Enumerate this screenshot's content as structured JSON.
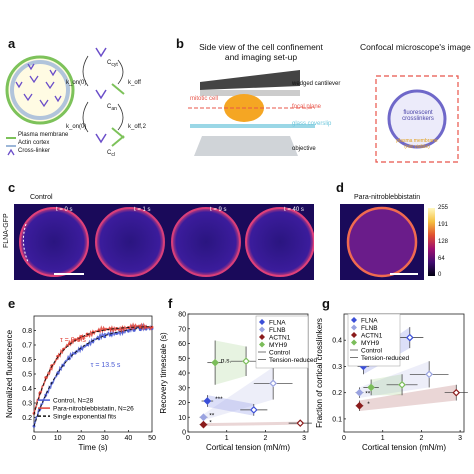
{
  "panels": {
    "a": {
      "letter": "a",
      "legend": [
        "Plasma membrane",
        "Actin cortex",
        "Cross-linker"
      ],
      "states": [
        "C",
        "C",
        "C"
      ],
      "state_subscripts": [
        "cyt",
        "an",
        "cl"
      ],
      "rate_labels": [
        "k_on(0)",
        "k_off",
        "k_on(0)",
        "k_off,2"
      ]
    },
    "b": {
      "letter": "b",
      "title_left": "Side view of the cell confinement and imaging set-up",
      "title_right": "Confocal microscope's image",
      "labels": {
        "cantilever": "wedged cantilever",
        "cell": "mitotic cell",
        "focal": "focal plane",
        "coverslip": "glass coverslip",
        "objective": "objective",
        "fluor": "fluorescent crosslinkers",
        "membrane": "plasma membrane (not visible)"
      },
      "colors": {
        "cell": "#f5a623",
        "focal": "#e8554a",
        "coverslip": "#9ad7e6",
        "ring": "#6f68c9"
      }
    },
    "c": {
      "letter": "c",
      "group_label": "Control",
      "ylabel": "FLNA-GFP",
      "frames": [
        "t = 0 s",
        "t = 1 s",
        "t = 9 s",
        "t = 40 s"
      ]
    },
    "d": {
      "letter": "d",
      "group_label": "Para-nitroblebbistatin",
      "colorbar_ticks": [
        "255",
        "191",
        "128",
        "64",
        "0"
      ]
    },
    "e": {
      "letter": "e"
    },
    "f": {
      "letter": "f"
    },
    "g": {
      "letter": "g"
    }
  },
  "chart_data": [
    {
      "panel": "e",
      "type": "line",
      "xlabel": "Time (s)",
      "ylabel": "Normalized fluorescence",
      "xlim": [
        0,
        50
      ],
      "ylim": [
        0.1,
        0.9
      ],
      "xticks": [
        0,
        10,
        20,
        30,
        40,
        50
      ],
      "yticks": [
        0.2,
        0.3,
        0.4,
        0.5,
        0.6,
        0.7,
        0.8
      ],
      "annotations": [
        "τ = 9.6 s",
        "τ = 13.5 s"
      ],
      "legend": "bottom",
      "series": [
        {
          "name": "Control, N=28",
          "color": "#4a5bd4",
          "tau": 13.5,
          "y0": 0.14,
          "plateau": 0.84
        },
        {
          "name": "Para-nitroblebbistatin, N=26",
          "color": "#e0443a",
          "tau": 9.6,
          "y0": 0.22,
          "plateau": 0.83
        },
        {
          "name": "Single exponential fits",
          "color": "#111111",
          "dashed": true
        }
      ]
    },
    {
      "panel": "f",
      "type": "scatter",
      "xlabel": "Cortical tension (mN/m)",
      "ylabel": "Recovery timescale (s)",
      "xlim": [
        0,
        3.1
      ],
      "ylim": [
        0,
        80
      ],
      "xticks": [
        0,
        1,
        2,
        3
      ],
      "yticks": [
        0,
        10,
        20,
        30,
        40,
        50,
        60,
        70,
        80
      ],
      "legend": "top-right",
      "legend_entries": [
        "FLNA",
        "FLNB",
        "ACTN1",
        "MYH9",
        "Control",
        "Tension-reduced"
      ],
      "annotations": [
        "n.s.",
        "***",
        "**",
        "*"
      ],
      "series": [
        {
          "name": "FLNA",
          "color": "#3b4fd8",
          "points": [
            {
              "x": 0.5,
              "y": 21,
              "xerr": 0.15,
              "yerr": 4
            },
            {
              "x": 1.7,
              "y": 15,
              "xerr": 0.35,
              "yerr": 4
            }
          ]
        },
        {
          "name": "FLNB",
          "color": "#9aa3e0",
          "points": [
            {
              "x": 0.4,
              "y": 10,
              "xerr": 0.1,
              "yerr": 2
            },
            {
              "x": 2.2,
              "y": 33,
              "xerr": 0.5,
              "yerr": 11
            }
          ]
        },
        {
          "name": "ACTN1",
          "color": "#8b1c1c",
          "points": [
            {
              "x": 0.4,
              "y": 5,
              "xerr": 0.1,
              "yerr": 1
            },
            {
              "x": 2.9,
              "y": 6,
              "xerr": 0.3,
              "yerr": 1
            }
          ]
        },
        {
          "name": "MYH9",
          "color": "#7bbd5a",
          "points": [
            {
              "x": 0.7,
              "y": 47,
              "xerr": 0.2,
              "yerr": 15
            },
            {
              "x": 1.5,
              "y": 48,
              "xerr": 0.4,
              "yerr": 10
            }
          ]
        }
      ]
    },
    {
      "panel": "g",
      "type": "scatter",
      "xlabel": "Cortical tension (mN/m)",
      "ylabel": "Fraction of cortical crosslinkers",
      "xlim": [
        0,
        3.1
      ],
      "ylim": [
        0.05,
        0.5
      ],
      "xticks": [
        0,
        1,
        2,
        3
      ],
      "yticks": [
        0.1,
        0.2,
        0.3,
        0.4
      ],
      "legend": "top-left",
      "legend_entries": [
        "FLNA",
        "FLNB",
        "ACTN1",
        "MYH9",
        "Control",
        "Tension-reduced"
      ],
      "annotations": [
        "***",
        "**",
        "*"
      ],
      "series": [
        {
          "name": "FLNA",
          "color": "#3b4fd8",
          "points": [
            {
              "x": 0.5,
              "y": 0.3,
              "xerr": 0.15,
              "yerr": 0.03
            },
            {
              "x": 1.7,
              "y": 0.41,
              "xerr": 0.35,
              "yerr": 0.04
            }
          ]
        },
        {
          "name": "FLNB",
          "color": "#9aa3e0",
          "points": [
            {
              "x": 0.4,
              "y": 0.2,
              "xerr": 0.1,
              "yerr": 0.02
            },
            {
              "x": 2.2,
              "y": 0.27,
              "xerr": 0.5,
              "yerr": 0.05
            }
          ]
        },
        {
          "name": "ACTN1",
          "color": "#8b1c1c",
          "points": [
            {
              "x": 0.4,
              "y": 0.15,
              "xerr": 0.1,
              "yerr": 0.02
            },
            {
              "x": 2.9,
              "y": 0.2,
              "xerr": 0.3,
              "yerr": 0.03
            }
          ]
        },
        {
          "name": "MYH9",
          "color": "#7bbd5a",
          "points": [
            {
              "x": 0.7,
              "y": 0.22,
              "xerr": 0.2,
              "yerr": 0.03
            },
            {
              "x": 1.5,
              "y": 0.23,
              "xerr": 0.4,
              "yerr": 0.04
            }
          ]
        }
      ]
    }
  ]
}
